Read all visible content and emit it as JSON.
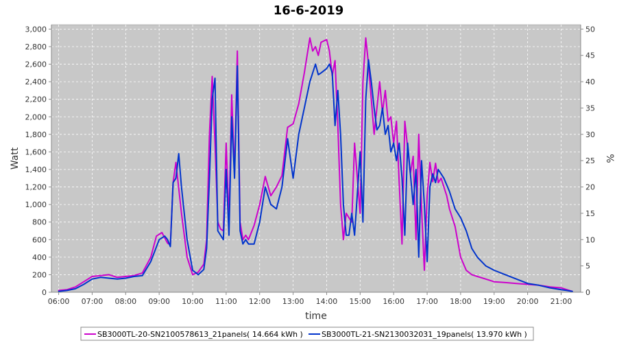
{
  "chart_data": {
    "type": "line",
    "title": "16-6-2019",
    "xlabel": "time",
    "ylabel": "Watt",
    "y2label": "%",
    "x_ticks": [
      "06:00",
      "07:00",
      "08:00",
      "09:00",
      "10:00",
      "11:00",
      "12:00",
      "13:00",
      "14:00",
      "15:00",
      "16:00",
      "17:00",
      "18:00",
      "19:00",
      "20:00",
      "21:00"
    ],
    "y_ticks": [
      "0",
      "200",
      "400",
      "600",
      "800",
      "1,000",
      "1,200",
      "1,400",
      "1,600",
      "1,800",
      "2,000",
      "2,200",
      "2,400",
      "2,600",
      "2,800",
      "3,000"
    ],
    "y2_ticks": [
      "0",
      "5",
      "10",
      "15",
      "20",
      "25",
      "30",
      "35",
      "40",
      "45",
      "50"
    ],
    "xlim": [
      "05:47",
      "21:35"
    ],
    "ylim": [
      0,
      3050
    ],
    "y2lim": [
      0,
      50.83
    ],
    "grid": true,
    "legend_position": "bottom",
    "colors": {
      "plot_bg": "#c8c8c8",
      "grid": "#ffffff",
      "series1": "#cc00cc",
      "series2": "#0033cc"
    },
    "series": [
      {
        "name": "SB3000TL-20-SN2100578613_21panels( 14.664 kWh )",
        "x": [
          "06:00",
          "06:15",
          "06:30",
          "06:45",
          "07:00",
          "07:15",
          "07:30",
          "07:45",
          "08:00",
          "08:15",
          "08:30",
          "08:45",
          "08:55",
          "09:00",
          "09:05",
          "09:10",
          "09:15",
          "09:20",
          "09:25",
          "09:30",
          "09:40",
          "09:50",
          "10:00",
          "10:10",
          "10:20",
          "10:25",
          "10:30",
          "10:35",
          "10:40",
          "10:45",
          "10:50",
          "10:55",
          "11:00",
          "11:05",
          "11:10",
          "11:15",
          "11:20",
          "11:25",
          "11:30",
          "11:35",
          "11:40",
          "11:50",
          "12:00",
          "12:10",
          "12:20",
          "12:30",
          "12:40",
          "12:50",
          "13:00",
          "13:10",
          "13:20",
          "13:30",
          "13:35",
          "13:40",
          "13:45",
          "13:50",
          "14:00",
          "14:05",
          "14:10",
          "14:15",
          "14:20",
          "14:25",
          "14:30",
          "14:35",
          "14:40",
          "14:45",
          "14:50",
          "15:00",
          "15:05",
          "15:10",
          "15:15",
          "15:20",
          "15:25",
          "15:30",
          "15:35",
          "15:40",
          "15:45",
          "15:50",
          "15:55",
          "16:00",
          "16:05",
          "16:10",
          "16:15",
          "16:20",
          "16:25",
          "16:30",
          "16:35",
          "16:40",
          "16:45",
          "16:50",
          "16:55",
          "17:00",
          "17:05",
          "17:10",
          "17:15",
          "17:20",
          "17:25",
          "17:30",
          "17:35",
          "17:40",
          "17:50",
          "18:00",
          "18:10",
          "18:20",
          "18:30",
          "18:45",
          "19:00",
          "19:20",
          "19:40",
          "20:00",
          "20:20",
          "20:40",
          "21:00",
          "21:10",
          "21:20"
        ],
        "values": [
          20,
          30,
          60,
          120,
          180,
          190,
          200,
          170,
          180,
          190,
          220,
          400,
          640,
          660,
          680,
          620,
          560,
          540,
          1250,
          1480,
          900,
          400,
          200,
          230,
          320,
          600,
          1800,
          2460,
          1700,
          800,
          720,
          700,
          1700,
          800,
          2250,
          1350,
          2750,
          800,
          600,
          650,
          600,
          760,
          1000,
          1320,
          1100,
          1200,
          1330,
          1880,
          1920,
          2150,
          2500,
          2900,
          2750,
          2800,
          2700,
          2850,
          2880,
          2750,
          2470,
          2640,
          1900,
          1000,
          600,
          900,
          850,
          800,
          1700,
          900,
          2400,
          2900,
          2600,
          2200,
          1800,
          2100,
          2400,
          2050,
          2300,
          1950,
          2000,
          1700,
          1950,
          1250,
          550,
          1950,
          1650,
          1350,
          1550,
          600,
          1800,
          950,
          250,
          1100,
          1480,
          1260,
          1470,
          1250,
          1300,
          1200,
          1100,
          950,
          750,
          400,
          250,
          200,
          180,
          150,
          120,
          110,
          100,
          90,
          80,
          60,
          50,
          30,
          10
        ]
      },
      {
        "name": "SB3000TL-21-SN2130032031_19panels( 13.970 kWh )",
        "x": [
          "06:00",
          "06:15",
          "06:30",
          "06:45",
          "07:00",
          "07:15",
          "07:30",
          "07:45",
          "08:00",
          "08:15",
          "08:30",
          "08:45",
          "09:00",
          "09:05",
          "09:10",
          "09:15",
          "09:20",
          "09:25",
          "09:30",
          "09:35",
          "09:40",
          "09:50",
          "10:00",
          "10:10",
          "10:20",
          "10:25",
          "10:30",
          "10:35",
          "10:40",
          "10:45",
          "10:50",
          "10:55",
          "11:00",
          "11:05",
          "11:10",
          "11:15",
          "11:20",
          "11:25",
          "11:30",
          "11:35",
          "11:40",
          "11:50",
          "12:00",
          "12:10",
          "12:20",
          "12:30",
          "12:40",
          "12:50",
          "13:00",
          "13:10",
          "13:20",
          "13:30",
          "13:40",
          "13:45",
          "13:50",
          "14:00",
          "14:05",
          "14:10",
          "14:15",
          "14:20",
          "14:25",
          "14:30",
          "14:35",
          "14:40",
          "14:45",
          "14:50",
          "15:00",
          "15:05",
          "15:10",
          "15:15",
          "15:20",
          "15:25",
          "15:30",
          "15:35",
          "15:40",
          "15:45",
          "15:50",
          "15:55",
          "16:00",
          "16:05",
          "16:10",
          "16:15",
          "16:20",
          "16:25",
          "16:30",
          "16:35",
          "16:40",
          "16:45",
          "16:50",
          "16:55",
          "17:00",
          "17:05",
          "17:10",
          "17:15",
          "17:20",
          "17:25",
          "17:30",
          "17:40",
          "17:50",
          "18:00",
          "18:10",
          "18:20",
          "18:30",
          "18:45",
          "19:00",
          "19:20",
          "19:40",
          "20:00",
          "20:20",
          "20:40",
          "21:00",
          "21:10",
          "21:20"
        ],
        "values": [
          10,
          20,
          40,
          90,
          150,
          170,
          160,
          150,
          160,
          180,
          190,
          350,
          600,
          620,
          640,
          600,
          520,
          1250,
          1300,
          1580,
          1200,
          600,
          250,
          200,
          260,
          500,
          1300,
          2200,
          2440,
          700,
          650,
          600,
          1400,
          650,
          2000,
          1300,
          2580,
          700,
          550,
          600,
          550,
          550,
          800,
          1200,
          1000,
          950,
          1200,
          1750,
          1300,
          1800,
          2100,
          2400,
          2600,
          2480,
          2500,
          2550,
          2600,
          2500,
          1900,
          2300,
          1800,
          1000,
          650,
          650,
          900,
          650,
          1600,
          800,
          2200,
          2650,
          2400,
          2100,
          1850,
          1900,
          2100,
          1800,
          1900,
          1600,
          1700,
          1500,
          1700,
          1300,
          650,
          1700,
          1350,
          1000,
          1400,
          400,
          1500,
          1000,
          350,
          1200,
          1350,
          1250,
          1400,
          1350,
          1300,
          1150,
          950,
          850,
          700,
          500,
          400,
          300,
          250,
          200,
          150,
          100,
          80,
          50,
          30,
          20,
          10
        ]
      }
    ]
  }
}
